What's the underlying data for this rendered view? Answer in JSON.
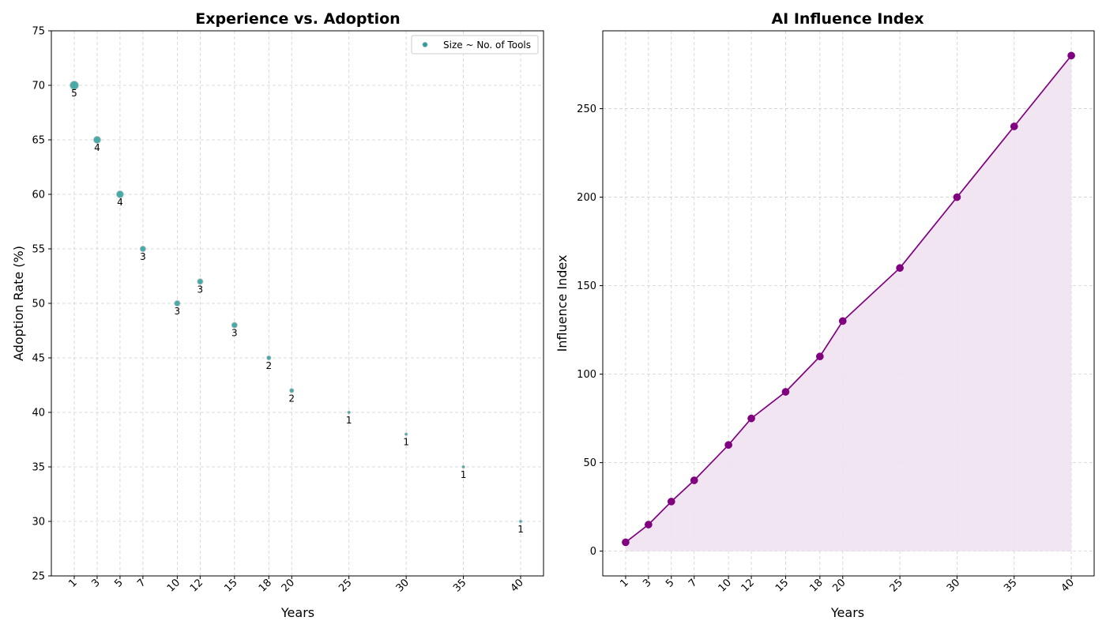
{
  "chart_data": [
    {
      "type": "scatter",
      "title": "Experience vs. Adoption",
      "xlabel": "Years",
      "ylabel": "Adoption Rate (%)",
      "x": [
        1,
        3,
        5,
        7,
        10,
        12,
        15,
        18,
        20,
        25,
        30,
        35,
        40
      ],
      "y": [
        70,
        65,
        60,
        55,
        50,
        52,
        48,
        45,
        42,
        40,
        38,
        35,
        30
      ],
      "size_values": [
        5,
        4,
        4,
        3,
        3,
        3,
        3,
        2,
        2,
        1,
        1,
        1,
        1
      ],
      "point_labels": [
        "5",
        "4",
        "4",
        "3",
        "3",
        "3",
        "3",
        "2",
        "2",
        "1",
        "1",
        "1",
        "1"
      ],
      "xticks": [
        "1",
        "3",
        "5",
        "7",
        "10",
        "12",
        "15",
        "18",
        "20",
        "25",
        "30",
        "35",
        "40"
      ],
      "xlim": [
        -1,
        42
      ],
      "ylim": [
        25,
        75
      ],
      "yticks": [
        "25",
        "30",
        "35",
        "40",
        "45",
        "50",
        "55",
        "60",
        "65",
        "70",
        "75"
      ],
      "legend": {
        "entries": [
          "Size ~ No. of Tools"
        ],
        "position": "top-right"
      },
      "grid": true,
      "colors": {
        "marker": "#2a9d9a",
        "marker_edge": "#c8c8c8"
      }
    },
    {
      "type": "area",
      "title": "AI Influence Index",
      "xlabel": "Years",
      "ylabel": "Influence Index",
      "x": [
        1,
        3,
        5,
        7,
        10,
        12,
        15,
        18,
        20,
        25,
        30,
        35,
        40
      ],
      "y": [
        5,
        15,
        28,
        40,
        60,
        75,
        90,
        110,
        130,
        160,
        200,
        240,
        280
      ],
      "xticks": [
        "1",
        "3",
        "5",
        "7",
        "10",
        "12",
        "15",
        "18",
        "20",
        "25",
        "30",
        "35",
        "40"
      ],
      "xlim": [
        -1,
        42
      ],
      "ylim": [
        -14,
        294
      ],
      "yticks": [
        "0",
        "50",
        "100",
        "150",
        "200",
        "250"
      ],
      "grid": true,
      "colors": {
        "line": "#800080",
        "fill": "#efe2f1"
      }
    }
  ]
}
